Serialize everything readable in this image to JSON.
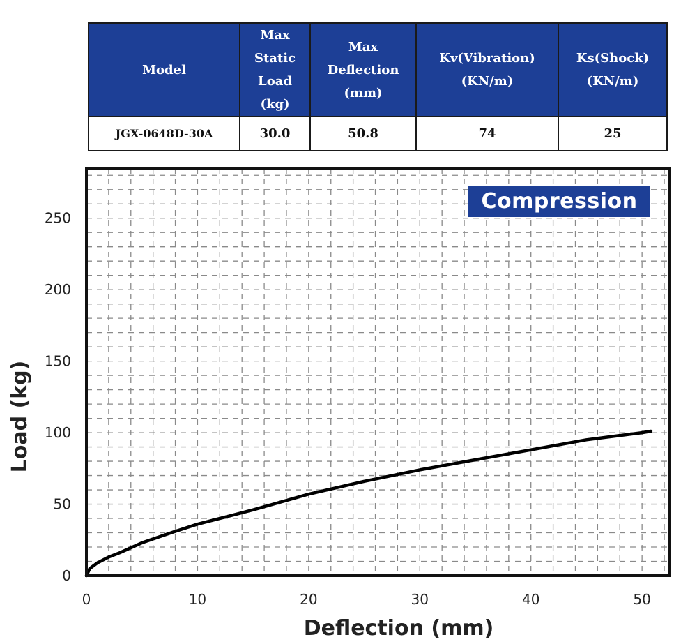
{
  "spec_table": {
    "headers": [
      [
        "Model"
      ],
      [
        "Max",
        "Static",
        "Load",
        "(kg)"
      ],
      [
        "Max",
        "Deflection",
        "(mm)"
      ],
      [
        "Kv(Vibration)",
        "(KN/m)"
      ],
      [
        "Ks(Shock)",
        "(KN/m)"
      ]
    ],
    "row": [
      "JGX-0648D-30A",
      "30.0",
      "50.8",
      "74",
      "25"
    ]
  },
  "chart_data": {
    "type": "line",
    "title": "",
    "legend": "Compression",
    "legend_placement": "top-right",
    "xlabel": "Deflection (mm)",
    "ylabel": "Load (kg)",
    "xlim": [
      0,
      52.5
    ],
    "ylim": [
      0,
      285
    ],
    "xticks": [
      0,
      10,
      20,
      30,
      40,
      50
    ],
    "yticks": [
      0,
      50,
      100,
      150,
      200,
      250
    ],
    "grid": true,
    "series": [
      {
        "color": "#000000",
        "x": [
          0,
          0.3,
          1,
          2,
          3,
          5,
          8,
          10,
          13,
          15,
          20,
          25,
          30,
          35,
          40,
          45,
          50,
          50.8
        ],
        "y": [
          0,
          5,
          9,
          13,
          16,
          23,
          31,
          36,
          42,
          46,
          57,
          66,
          74,
          81,
          88,
          95,
          100,
          101
        ]
      }
    ]
  }
}
